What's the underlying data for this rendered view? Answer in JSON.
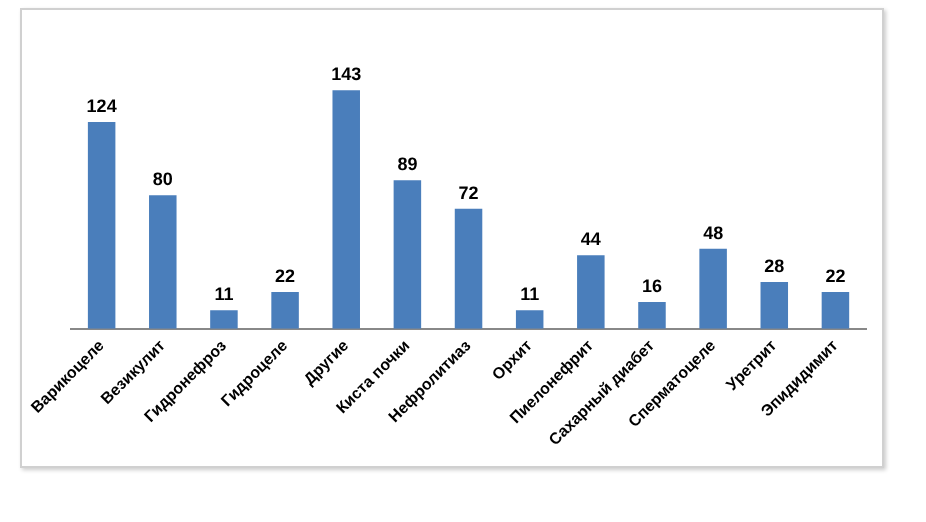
{
  "chart_data": {
    "type": "bar",
    "categories": [
      "Варикоцеле",
      "Везикулит",
      "Гидронефроз",
      "Гидроцеле",
      "Другие",
      "Киста почки",
      "Нефролитиаз",
      "Орхит",
      "Пиелонефрит",
      "Сахарный диабет",
      "Сперматоцеле",
      "Уретрит",
      "Эпидидимит"
    ],
    "values": [
      124,
      80,
      11,
      22,
      143,
      89,
      72,
      11,
      44,
      16,
      48,
      28,
      22
    ],
    "color": "#4a7ebb",
    "data_labels": true,
    "grid": false,
    "legend": false
  }
}
